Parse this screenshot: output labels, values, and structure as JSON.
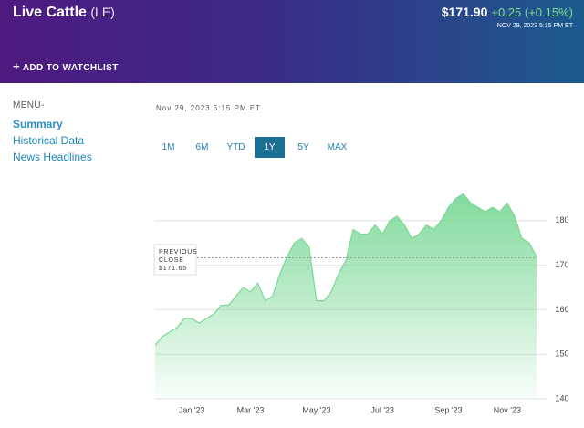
{
  "header": {
    "title": "Live Cattle",
    "symbol": "(LE)",
    "price": "$171.90",
    "change": "+0.25 (+0.15%)",
    "timestamp": "NOV 29, 2023 5:15 PM ET",
    "watchlist": "ADD TO WATCHLIST"
  },
  "menu": {
    "label": "MENU-",
    "items": [
      "Summary",
      "Historical Data",
      "News Headlines"
    ]
  },
  "chart_panel": {
    "timestamp": "Nov 29, 2023 5:15 PM ET",
    "ranges": [
      "1M",
      "6M",
      "YTD",
      "1Y",
      "5Y",
      "MAX"
    ],
    "active_range": "1Y"
  },
  "chart_data": {
    "type": "area",
    "categories": [
      null,
      null,
      null,
      null,
      null,
      "Jan '23",
      null,
      null,
      null,
      null,
      null,
      null,
      null,
      "Mar '23",
      null,
      null,
      null,
      null,
      null,
      null,
      null,
      null,
      "May '23",
      null,
      null,
      null,
      null,
      null,
      null,
      null,
      null,
      "Jul '23",
      null,
      null,
      null,
      null,
      null,
      null,
      null,
      null,
      "Sep '23",
      null,
      null,
      null,
      null,
      null,
      null,
      null,
      "Nov '23",
      null,
      null,
      null,
      null
    ],
    "values": [
      152,
      154,
      155,
      156,
      158,
      158,
      157,
      158,
      159,
      161,
      161,
      163,
      165,
      164,
      166,
      162,
      163,
      168,
      172,
      175,
      176,
      174,
      162,
      162,
      164,
      168,
      171,
      178,
      177,
      177,
      179,
      177,
      180,
      181,
      179,
      176,
      177,
      179,
      178,
      180,
      183,
      185,
      186,
      184,
      183,
      182,
      183,
      182,
      184,
      181,
      176,
      175,
      171.9
    ],
    "color": "#7ad896",
    "ylim": [
      140,
      190
    ],
    "yticks": [
      140,
      150,
      160,
      170,
      180
    ],
    "grid": true,
    "previous_close": {
      "value": 171.65,
      "label": "$171.65"
    },
    "previous_close_title": [
      "PREVIOUS",
      "CLOSE"
    ]
  }
}
